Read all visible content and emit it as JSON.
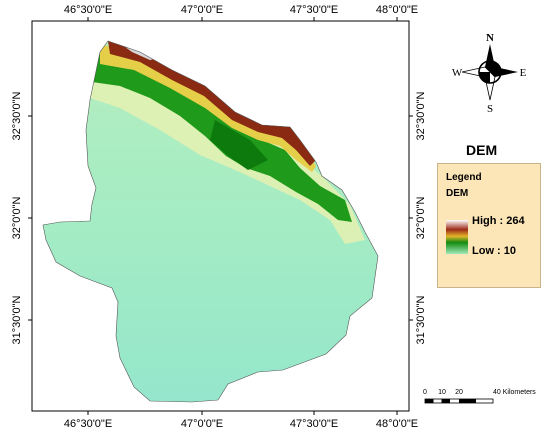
{
  "map": {
    "top_x_labels": [
      "46°30'0\"E",
      "47°0'0\"E",
      "47°30'0\"E",
      "48°0'0\"E"
    ],
    "bottom_x_labels": [
      "46°30'0\"E",
      "47°0'0\"E",
      "47°30'0\"E",
      "48°0'0\"E"
    ],
    "left_y_labels": [
      "32°30'0\"N",
      "32°0'0\"N",
      "31°30'0\"N"
    ],
    "right_y_labels": [
      "32°30'0\"N",
      "32°0'0\"N",
      "31°30'0\"N"
    ]
  },
  "north_arrow": {
    "n": "N",
    "s": "S",
    "e": "E",
    "w": "W"
  },
  "side_title": "DEM",
  "legend": {
    "heading": "Legend",
    "layer": "DEM",
    "high": "High : 264",
    "low": "Low :  10",
    "ramp_colors": [
      "#ffffff",
      "#9c2b18",
      "#e3b32a",
      "#138c10",
      "#9fe8b8"
    ]
  },
  "scale_bar": {
    "labels": [
      "0",
      "10",
      "20",
      "40 Kilometers"
    ]
  },
  "colors": {
    "lowland": "#97e8c6",
    "plain": "#a4ecc0",
    "band_pale": "#e8f2b0",
    "band_green": "#1e9a1a",
    "band_dark": "#0d7a0d",
    "band_yellow": "#e7d04a",
    "band_brown": "#8a2a12",
    "legend_bg": "#fce6b8"
  }
}
